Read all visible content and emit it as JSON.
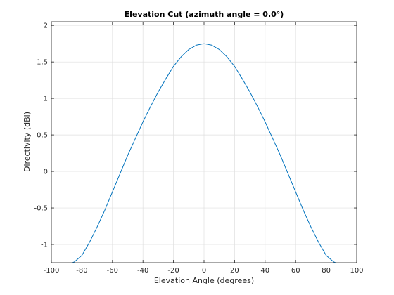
{
  "chart_data": {
    "type": "line",
    "title": "Elevation Cut (azimuth angle = 0.0°)",
    "xlabel": "Elevation Angle (degrees)",
    "ylabel": "Directivity (dBi)",
    "xlim": [
      -100,
      100
    ],
    "ylim": [
      -1.25,
      2.05
    ],
    "xticks": [
      -100,
      -80,
      -60,
      -40,
      -20,
      0,
      20,
      40,
      60,
      80,
      100
    ],
    "xtick_labels": [
      "-100",
      "-80",
      "-60",
      "-40",
      "-20",
      "0",
      "20",
      "40",
      "60",
      "80",
      "100"
    ],
    "yticks": [
      -1,
      -0.5,
      0,
      0.5,
      1,
      1.5,
      2
    ],
    "ytick_labels": [
      "-1",
      "-0.5",
      "0",
      "0.5",
      "1",
      "1.5",
      "2"
    ],
    "grid": true,
    "series": [
      {
        "color": "#0072bd",
        "x": [
          -90,
          -85,
          -80,
          -75,
          -70,
          -65,
          -60,
          -55,
          -50,
          -45,
          -40,
          -35,
          -30,
          -25,
          -20,
          -15,
          -10,
          -5,
          0,
          5,
          10,
          15,
          20,
          25,
          30,
          35,
          40,
          45,
          50,
          55,
          60,
          65,
          70,
          75,
          80,
          85,
          90
        ],
        "values": [
          -1.28,
          -1.24,
          -1.15,
          -0.97,
          -0.76,
          -0.53,
          -0.28,
          -0.03,
          0.22,
          0.45,
          0.68,
          0.89,
          1.09,
          1.27,
          1.44,
          1.57,
          1.67,
          1.73,
          1.75,
          1.73,
          1.67,
          1.57,
          1.44,
          1.27,
          1.09,
          0.89,
          0.68,
          0.45,
          0.22,
          -0.03,
          -0.28,
          -0.53,
          -0.76,
          -0.97,
          -1.15,
          -1.24,
          -1.28
        ]
      }
    ]
  }
}
